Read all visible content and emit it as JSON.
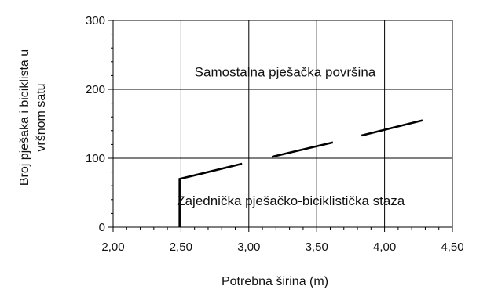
{
  "chart_data": {
    "type": "line",
    "xlabel": "Potrebna širina (m)",
    "ylabel_lines": [
      "Broj pješaka i biciklista u",
      "vršnom satu"
    ],
    "xlim": [
      2.0,
      4.5
    ],
    "ylim": [
      0,
      300
    ],
    "x_ticks": [
      2.0,
      2.5,
      3.0,
      3.5,
      4.0,
      4.5
    ],
    "x_tick_labels": [
      "2,00",
      "2,50",
      "3,00",
      "3,50",
      "4,00",
      "4,50"
    ],
    "y_ticks": [
      0,
      100,
      200,
      300
    ],
    "y_tick_labels": [
      "0",
      "100",
      "200",
      "300"
    ],
    "x_minor_step": 0.1,
    "y_minor_step": 20,
    "grid": true,
    "series": [
      {
        "color": "#000000",
        "segments": [
          [
            [
              2.49,
              0
            ],
            [
              2.49,
              70
            ],
            [
              2.95,
              92
            ]
          ],
          [
            [
              3.17,
              102
            ],
            [
              3.62,
              123
            ]
          ],
          [
            [
              3.83,
              133
            ],
            [
              4.28,
              155
            ]
          ]
        ]
      }
    ],
    "annotations": [
      {
        "text": "Samostalna pješačka površina",
        "x": 2.6,
        "y": 219
      },
      {
        "text": "Zajednička pješačko-biciklistička staza",
        "x": 2.47,
        "y": 32
      }
    ]
  }
}
